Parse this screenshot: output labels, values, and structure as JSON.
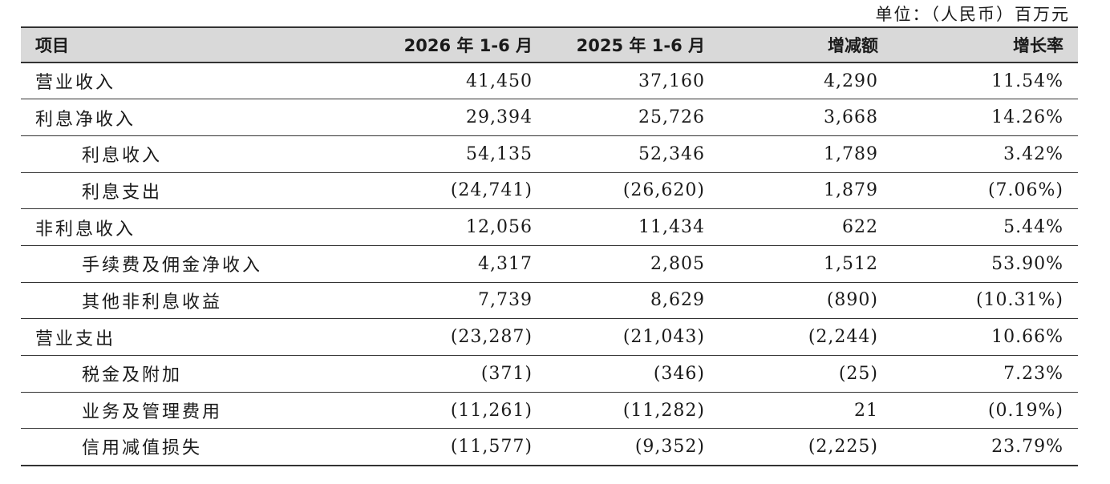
{
  "unit_note": "单位：（人民币）百万元",
  "headers": [
    "项目",
    "2026 年 1-6 月",
    "2025 年 1-6 月",
    "增减额",
    "增长率"
  ],
  "rows": [
    {
      "label": "营业收入",
      "indent": false,
      "v2026": "41,450",
      "v2025": "37,160",
      "change": "4,290",
      "rate": "11.54%"
    },
    {
      "label": "利息净收入",
      "indent": false,
      "v2026": "29,394",
      "v2025": "25,726",
      "change": "3,668",
      "rate": "14.26%"
    },
    {
      "label": "利息收入",
      "indent": true,
      "v2026": "54,135",
      "v2025": "52,346",
      "change": "1,789",
      "rate": "3.42%"
    },
    {
      "label": "利息支出",
      "indent": true,
      "v2026": "(24,741)",
      "v2025": "(26,620)",
      "change": "1,879",
      "rate": "(7.06%)"
    },
    {
      "label": "非利息收入",
      "indent": false,
      "v2026": "12,056",
      "v2025": "11,434",
      "change": "622",
      "rate": "5.44%"
    },
    {
      "label": "手续费及佣金净收入",
      "indent": true,
      "v2026": "4,317",
      "v2025": "2,805",
      "change": "1,512",
      "rate": "53.90%"
    },
    {
      "label": "其他非利息收益",
      "indent": true,
      "v2026": "7,739",
      "v2025": "8,629",
      "change": "(890)",
      "rate": "(10.31%)"
    },
    {
      "label": "营业支出",
      "indent": false,
      "v2026": "(23,287)",
      "v2025": "(21,043)",
      "change": "(2,244)",
      "rate": "10.66%"
    },
    {
      "label": "税金及附加",
      "indent": true,
      "v2026": "(371)",
      "v2025": "(346)",
      "change": "(25)",
      "rate": "7.23%"
    },
    {
      "label": "业务及管理费用",
      "indent": true,
      "v2026": "(11,261)",
      "v2025": "(11,282)",
      "change": "21",
      "rate": "(0.19%)"
    },
    {
      "label": "信用减值损失",
      "indent": true,
      "v2026": "(11,577)",
      "v2025": "(9,352)",
      "change": "(2,225)",
      "rate": "23.79%"
    }
  ]
}
